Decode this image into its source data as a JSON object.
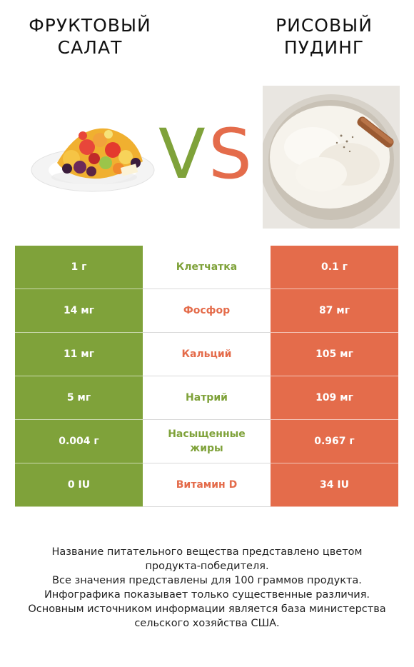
{
  "left_product": {
    "title_line1": "ФРУКТОВЫЙ",
    "title_line2": "САЛАТ"
  },
  "right_product": {
    "title_line1": "РИСОВЫЙ",
    "title_line2": "ПУДИНГ"
  },
  "vs": {
    "v": "V",
    "s": "S"
  },
  "colors": {
    "left": "#7fa23a",
    "right": "#e46c4b"
  },
  "rows": [
    {
      "left": "1 г",
      "nutrient": "Клетчатка",
      "right": "0.1 г",
      "winner": "left"
    },
    {
      "left": "14 мг",
      "nutrient": "Фосфор",
      "right": "87 мг",
      "winner": "right"
    },
    {
      "left": "11 мг",
      "nutrient": "Кальций",
      "right": "105 мг",
      "winner": "right"
    },
    {
      "left": "5 мг",
      "nutrient": "Натрий",
      "right": "109 мг",
      "winner": "left"
    },
    {
      "left": "0.004 г",
      "nutrient": "Насыщенные жиры",
      "right": "0.967 г",
      "winner": "left"
    },
    {
      "left": "0 IU",
      "nutrient": "Витамин D",
      "right": "34 IU",
      "winner": "right"
    }
  ],
  "footnote": {
    "line1": "Название питательного вещества представлено цветом",
    "line2": "продукта-победителя.",
    "line3": "Все значения представлены для 100 граммов продукта.",
    "line4": "Инфографика показывает только существенные различия.",
    "line5": "Основным источником информации является база министерства",
    "line6": "сельского хозяйства США."
  }
}
